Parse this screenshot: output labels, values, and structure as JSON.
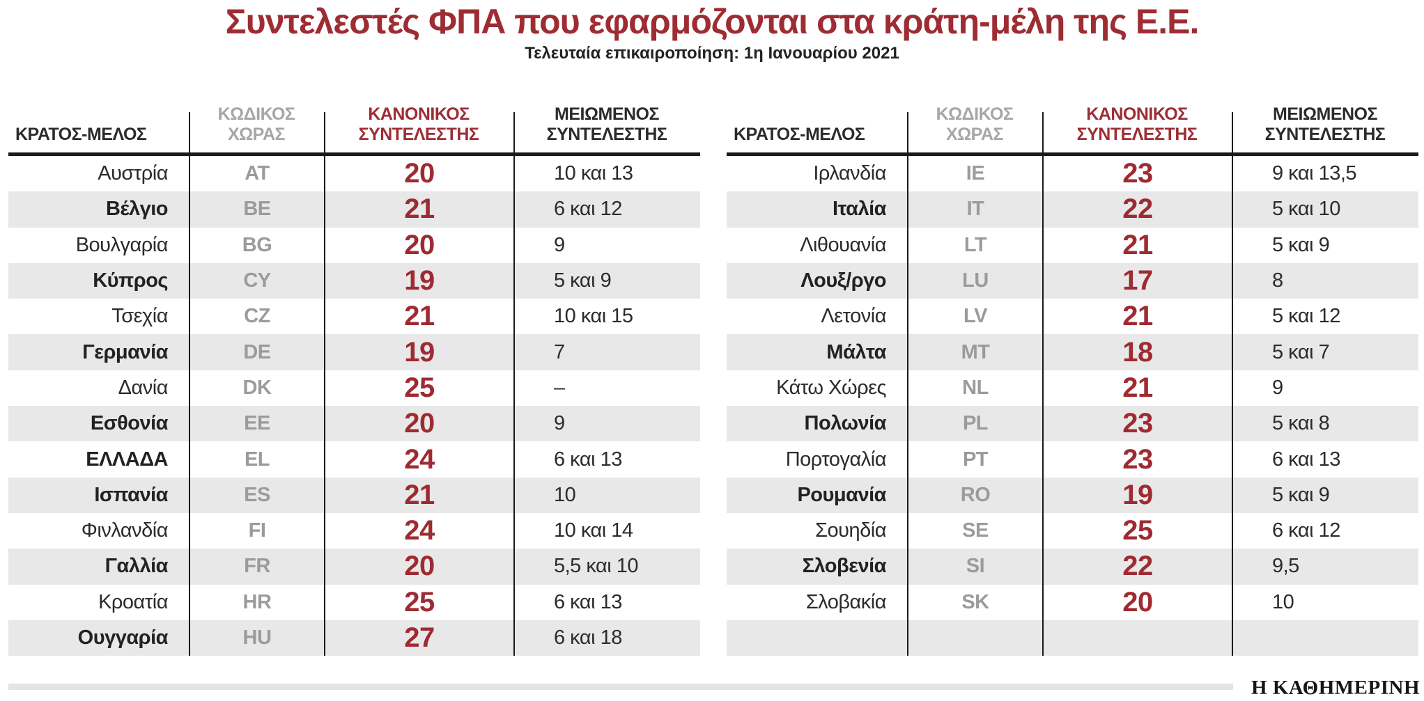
{
  "title": "Συντελεστές ΦΠΑ που εφαρμόζονται στα κράτη-μέλη της Ε.Ε.",
  "subtitle": "Τελευταία επικαιροποίηση: 1η Ιανουαρίου 2021",
  "brand": "Η ΚΑΘΗΜΕΡΙΝΗ",
  "colors": {
    "title_red": "#9d2d33",
    "standard_rate_red": "#9e2b32",
    "header_gray": "#a6a6a6",
    "code_gray": "#9b9b9b",
    "row_alt_gray": "#e8e8e8",
    "text_black": "#2b2b2b",
    "footer_bar_gray": "#e4e4e4"
  },
  "header_columns": [
    {
      "id": "country",
      "lines": [
        "ΚΡΑΤΟΣ-ΜΕΛΟΣ"
      ]
    },
    {
      "id": "code",
      "lines": [
        "ΚΩΔΙΚΟΣ",
        "ΧΩΡΑΣ"
      ]
    },
    {
      "id": "standard",
      "lines": [
        "ΚΑΝΟΝΙΚΟΣ",
        "ΣΥΝΤΕΛΕΣΤΗΣ"
      ]
    },
    {
      "id": "reduced",
      "lines": [
        "ΜΕΙΩΜΕΝΟΣ",
        "ΣΥΝΤΕΛΕΣΤΗΣ"
      ]
    }
  ],
  "chart_data": {
    "type": "table",
    "title": "Συντελεστές ΦΠΑ που εφαρμόζονται στα κράτη-μέλη της Ε.Ε.",
    "subtitle": "Τελευταία επικαιροποίηση: 1η Ιανουαρίου 2021",
    "columns": [
      "ΚΡΑΤΟΣ-ΜΕΛΟΣ",
      "ΚΩΔΙΚΟΣ ΧΩΡΑΣ",
      "ΚΑΝΟΝΙΚΟΣ ΣΥΝΤΕΛΕΣΤΗΣ",
      "ΜΕΙΩΜΕΝΟΣ ΣΥΝΤΕΛΕΣΤΗΣ"
    ],
    "left_rows": [
      {
        "country": "Αυστρία",
        "code": "AT",
        "standard": "20",
        "reduced": "10 και 13",
        "emphasis": false
      },
      {
        "country": "Βέλγιο",
        "code": "BE",
        "standard": "21",
        "reduced": "6 και 12",
        "emphasis": true
      },
      {
        "country": "Βουλγαρία",
        "code": "BG",
        "standard": "20",
        "reduced": "9",
        "emphasis": false
      },
      {
        "country": "Κύπρος",
        "code": "CY",
        "standard": "19",
        "reduced": "5 και 9",
        "emphasis": true
      },
      {
        "country": "Τσεχία",
        "code": "CZ",
        "standard": "21",
        "reduced": "10 και 15",
        "emphasis": false
      },
      {
        "country": "Γερμανία",
        "code": "DE",
        "standard": "19",
        "reduced": "7",
        "emphasis": true
      },
      {
        "country": "Δανία",
        "code": "DK",
        "standard": "25",
        "reduced": "–",
        "emphasis": false
      },
      {
        "country": "Εσθονία",
        "code": "EE",
        "standard": "20",
        "reduced": "9",
        "emphasis": true
      },
      {
        "country": "ΕΛΛΑΔΑ",
        "code": "EL",
        "standard": "24",
        "reduced": "6 και 13",
        "emphasis": true
      },
      {
        "country": "Ισπανία",
        "code": "ES",
        "standard": "21",
        "reduced": "10",
        "emphasis": true
      },
      {
        "country": "Φινλανδία",
        "code": "FI",
        "standard": "24",
        "reduced": "10 και 14",
        "emphasis": false
      },
      {
        "country": "Γαλλία",
        "code": "FR",
        "standard": "20",
        "reduced": "5,5 και 10",
        "emphasis": true
      },
      {
        "country": "Κροατία",
        "code": "HR",
        "standard": "25",
        "reduced": "6 και 13",
        "emphasis": false
      },
      {
        "country": "Ουγγαρία",
        "code": "HU",
        "standard": "27",
        "reduced": "6 και 18",
        "emphasis": true
      }
    ],
    "right_rows": [
      {
        "country": "Ιρλανδία",
        "code": "IE",
        "standard": "23",
        "reduced": "9 και 13,5",
        "emphasis": false
      },
      {
        "country": "Ιταλία",
        "code": "IT",
        "standard": "22",
        "reduced": "5 και 10",
        "emphasis": true
      },
      {
        "country": "Λιθουανία",
        "code": "LT",
        "standard": "21",
        "reduced": "5 και 9",
        "emphasis": false
      },
      {
        "country": "Λουξ/ργο",
        "code": "LU",
        "standard": "17",
        "reduced": "8",
        "emphasis": true
      },
      {
        "country": "Λετονία",
        "code": "LV",
        "standard": "21",
        "reduced": "5 και 12",
        "emphasis": false
      },
      {
        "country": "Μάλτα",
        "code": "MT",
        "standard": "18",
        "reduced": "5 και 7",
        "emphasis": true
      },
      {
        "country": "Κάτω Χώρες",
        "code": "NL",
        "standard": "21",
        "reduced": "9",
        "emphasis": false
      },
      {
        "country": "Πολωνία",
        "code": "PL",
        "standard": "23",
        "reduced": "5 και 8",
        "emphasis": true
      },
      {
        "country": "Πορτογαλία",
        "code": "PT",
        "standard": "23",
        "reduced": "6 και 13",
        "emphasis": false
      },
      {
        "country": "Ρουμανία",
        "code": "RO",
        "standard": "19",
        "reduced": "5 και 9",
        "emphasis": true
      },
      {
        "country": "Σουηδία",
        "code": "SE",
        "standard": "25",
        "reduced": "6 και 12",
        "emphasis": false
      },
      {
        "country": "Σλοβενία",
        "code": "SI",
        "standard": "22",
        "reduced": "9,5",
        "emphasis": true
      },
      {
        "country": "Σλοβακία",
        "code": "SK",
        "standard": "20",
        "reduced": "10",
        "emphasis": false
      },
      {
        "country": "",
        "code": "",
        "standard": "",
        "reduced": "",
        "emphasis": false
      }
    ]
  }
}
